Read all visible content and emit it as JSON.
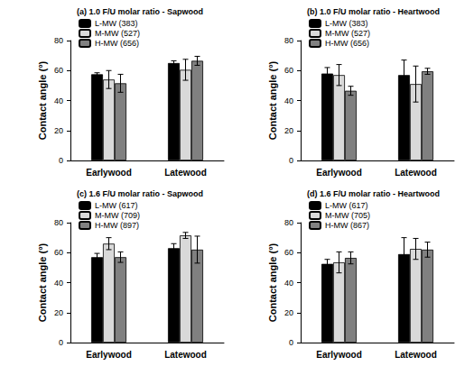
{
  "chart_data": [
    {
      "type": "bar",
      "title": "(a) 1.0 F/U molar ratio - Sapwood",
      "y_label": "Contact angle (°)",
      "categories": [
        "Earlywood",
        "Latewood"
      ],
      "series": [
        {
          "name": "L-MW (383)",
          "color": "#000000",
          "values": [
            57.5,
            65
          ],
          "errors": [
            1,
            1.5
          ]
        },
        {
          "name": "M-MW (527)",
          "color": "#d9d9d9",
          "values": [
            54,
            60.5
          ],
          "errors": [
            6,
            7
          ]
        },
        {
          "name": "H-MW (656)",
          "color": "#808080",
          "values": [
            51.5,
            66.5
          ],
          "errors": [
            6,
            3
          ]
        }
      ],
      "ylim": [
        0,
        80
      ],
      "yticks": [
        0,
        20,
        40,
        60,
        80
      ],
      "grid": false,
      "legend": "upper left"
    },
    {
      "type": "bar",
      "title": "(b) 1.0 F/U molar ratio - Heartwood",
      "y_label": "Contact angle (°)",
      "categories": [
        "Earlywood",
        "Latewood"
      ],
      "series": [
        {
          "name": "L-MW (383)",
          "color": "#000000",
          "values": [
            58,
            57
          ],
          "errors": [
            4,
            10
          ]
        },
        {
          "name": "M-MW (527)",
          "color": "#d9d9d9",
          "values": [
            57,
            51
          ],
          "errors": [
            7,
            12
          ]
        },
        {
          "name": "H-MW (656)",
          "color": "#808080",
          "values": [
            46.5,
            59.5
          ],
          "errors": [
            3,
            2
          ]
        }
      ],
      "ylim": [
        0,
        80
      ],
      "yticks": [
        0,
        20,
        40,
        60,
        80
      ],
      "grid": false,
      "legend": "upper left"
    },
    {
      "type": "bar",
      "title": "(c) 1.6 F/U molar ratio - Sapwood",
      "y_label": "Contact angle (°)",
      "categories": [
        "Earlywood",
        "Latewood"
      ],
      "series": [
        {
          "name": "L-MW (617)",
          "color": "#000000",
          "values": [
            57,
            63
          ],
          "errors": [
            2.5,
            3
          ]
        },
        {
          "name": "M-MW (709)",
          "color": "#d9d9d9",
          "values": [
            66,
            71.5
          ],
          "errors": [
            4,
            2
          ]
        },
        {
          "name": "H-MW (897)",
          "color": "#808080",
          "values": [
            57,
            62
          ],
          "errors": [
            3.5,
            9
          ]
        }
      ],
      "ylim": [
        0,
        80
      ],
      "yticks": [
        0,
        20,
        40,
        60,
        80
      ],
      "grid": false,
      "legend": "upper left"
    },
    {
      "type": "bar",
      "title": "(d) 1.6 F/U molar ratio - Heartwood",
      "y_label": "Contact angle (°)",
      "categories": [
        "Earlywood",
        "Latewood"
      ],
      "series": [
        {
          "name": "L-MW (617)",
          "color": "#000000",
          "values": [
            52.5,
            59
          ],
          "errors": [
            3,
            11
          ]
        },
        {
          "name": "M-MW (705)",
          "color": "#d9d9d9",
          "values": [
            53.5,
            62.5
          ],
          "errors": [
            7,
            7
          ]
        },
        {
          "name": "H-MW (867)",
          "color": "#808080",
          "values": [
            56.5,
            62
          ],
          "errors": [
            4,
            5
          ]
        }
      ],
      "ylim": [
        0,
        80
      ],
      "yticks": [
        0,
        20,
        40,
        60,
        80
      ],
      "grid": false,
      "legend": "upper left"
    }
  ]
}
